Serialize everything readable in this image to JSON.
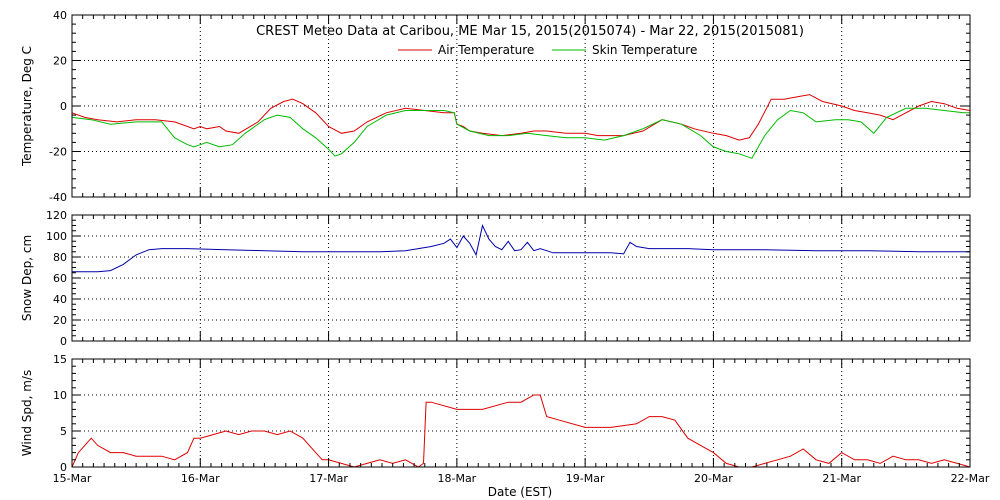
{
  "title": "CREST Meteo Data at Caribou, ME   Mar 15, 2015(2015074) - Mar 22, 2015(2015081)",
  "xlabel": "Date (EST)",
  "chart_data": [
    {
      "type": "line",
      "ylabel": "Temperature, Deg C",
      "ylim": [
        -40,
        40
      ],
      "yticks": [
        "40",
        "20",
        "0",
        "-20",
        "-40"
      ],
      "xlim": [
        0,
        7
      ],
      "grid": true,
      "legend_placement": "top-center",
      "series": [
        {
          "name": "Air Temperature",
          "color": "#dd0000",
          "x": [
            0,
            0.1,
            0.2,
            0.35,
            0.5,
            0.65,
            0.8,
            0.95,
            1.0,
            1.05,
            1.15,
            1.2,
            1.3,
            1.45,
            1.55,
            1.65,
            1.72,
            1.8,
            1.9,
            2.0,
            2.1,
            2.2,
            2.3,
            2.45,
            2.6,
            2.75,
            2.9,
            2.98,
            3.0,
            3.05,
            3.1,
            3.2,
            3.35,
            3.5,
            3.6,
            3.7,
            3.85,
            4.0,
            4.1,
            4.2,
            4.3,
            4.45,
            4.6,
            4.75,
            4.85,
            5.0,
            5.1,
            5.2,
            5.28,
            5.35,
            5.45,
            5.55,
            5.65,
            5.75,
            5.85,
            6.0,
            6.1,
            6.2,
            6.3,
            6.4,
            6.5,
            6.6,
            6.7,
            6.8,
            6.9,
            7.0
          ],
          "y": [
            -3,
            -5,
            -6,
            -7,
            -6,
            -6,
            -7,
            -10,
            -9,
            -10,
            -9,
            -11,
            -12,
            -7,
            -1,
            2,
            3,
            1,
            -3,
            -9,
            -12,
            -11,
            -7,
            -3,
            -1,
            -2,
            -3,
            -3,
            -8,
            -9,
            -11,
            -12,
            -13,
            -12,
            -11,
            -11,
            -12,
            -12,
            -13,
            -13,
            -13,
            -11,
            -6,
            -8,
            -10,
            -12,
            -13,
            -15,
            -14,
            -8,
            3,
            3,
            4,
            5,
            2,
            0,
            -2,
            -3,
            -4,
            -6,
            -3,
            0,
            2,
            1,
            -1,
            -2
          ]
        },
        {
          "name": "Skin Temperature",
          "color": "#00bb00",
          "x": [
            0,
            0.15,
            0.3,
            0.5,
            0.7,
            0.8,
            0.9,
            0.95,
            1.0,
            1.05,
            1.15,
            1.25,
            1.35,
            1.5,
            1.6,
            1.7,
            1.8,
            1.9,
            2.0,
            2.05,
            2.1,
            2.2,
            2.3,
            2.45,
            2.6,
            2.75,
            2.9,
            2.98,
            3.0,
            3.1,
            3.25,
            3.4,
            3.55,
            3.7,
            3.85,
            4.0,
            4.15,
            4.3,
            4.45,
            4.6,
            4.75,
            4.9,
            5.0,
            5.1,
            5.2,
            5.3,
            5.4,
            5.5,
            5.6,
            5.7,
            5.8,
            5.95,
            6.05,
            6.15,
            6.25,
            6.35,
            6.5,
            6.65,
            6.8,
            6.95,
            7.0
          ],
          "y": [
            -5,
            -6,
            -8,
            -7,
            -7,
            -14,
            -17,
            -18,
            -17,
            -16,
            -18,
            -17,
            -12,
            -6,
            -4,
            -5,
            -10,
            -14,
            -19,
            -22,
            -21,
            -16,
            -9,
            -4,
            -2,
            -2,
            -2,
            -3,
            -8,
            -11,
            -13,
            -13,
            -12,
            -13,
            -14,
            -14,
            -15,
            -13,
            -10,
            -6,
            -8,
            -13,
            -18,
            -20,
            -21,
            -23,
            -13,
            -6,
            -2,
            -3,
            -7,
            -6,
            -6,
            -7,
            -12,
            -5,
            -1,
            -1,
            -2,
            -3,
            -3
          ]
        }
      ]
    },
    {
      "type": "line",
      "ylabel": "Snow Dep, cm",
      "ylim": [
        0,
        120
      ],
      "yticks": [
        "120",
        "100",
        "80",
        "60",
        "40",
        "20",
        "0"
      ],
      "xlim": [
        0,
        7
      ],
      "grid": true,
      "series": [
        {
          "color": "#0000aa",
          "x": [
            0,
            0.2,
            0.3,
            0.4,
            0.5,
            0.6,
            0.7,
            0.9,
            1.2,
            1.5,
            1.8,
            2.0,
            2.4,
            2.6,
            2.7,
            2.8,
            2.9,
            2.95,
            3.0,
            3.05,
            3.1,
            3.15,
            3.2,
            3.25,
            3.3,
            3.35,
            3.4,
            3.45,
            3.5,
            3.55,
            3.6,
            3.65,
            3.7,
            3.75,
            3.8,
            3.9,
            4.0,
            4.2,
            4.3,
            4.35,
            4.4,
            4.5,
            4.8,
            5.0,
            5.4,
            5.8,
            6.2,
            6.6,
            7.0
          ],
          "y": [
            66,
            66,
            67,
            73,
            82,
            87,
            88,
            88,
            87,
            86,
            85,
            85,
            85,
            86,
            88,
            90,
            93,
            97,
            89,
            100,
            93,
            82,
            110,
            97,
            90,
            87,
            95,
            86,
            87,
            94,
            86,
            88,
            86,
            84,
            84,
            84,
            84,
            84,
            83,
            94,
            90,
            88,
            88,
            87,
            87,
            86,
            86,
            85,
            85
          ]
        }
      ]
    },
    {
      "type": "line",
      "ylabel": "Wind Spd, m/s",
      "ylim": [
        0,
        15
      ],
      "yticks": [
        "15",
        "10",
        "5",
        "0"
      ],
      "xlim": [
        0,
        7
      ],
      "xticks": [
        "15-Mar",
        "16-Mar",
        "17-Mar",
        "18-Mar",
        "19-Mar",
        "20-Mar",
        "21-Mar",
        "22-Mar"
      ],
      "grid": true,
      "series": [
        {
          "color": "#dd0000",
          "x": [
            0,
            0.05,
            0.1,
            0.15,
            0.2,
            0.3,
            0.4,
            0.5,
            0.6,
            0.7,
            0.8,
            0.9,
            0.95,
            1.0,
            1.1,
            1.2,
            1.3,
            1.4,
            1.5,
            1.6,
            1.7,
            1.8,
            1.85,
            1.9,
            1.95,
            2.0,
            2.1,
            2.2,
            2.3,
            2.4,
            2.5,
            2.6,
            2.7,
            2.74,
            2.76,
            2.8,
            3.0,
            3.2,
            3.4,
            3.5,
            3.6,
            3.65,
            3.7,
            3.8,
            4.0,
            4.2,
            4.4,
            4.5,
            4.6,
            4.7,
            4.8,
            4.9,
            5.0,
            5.1,
            5.2,
            5.3,
            5.4,
            5.5,
            5.6,
            5.7,
            5.8,
            5.9,
            6.0,
            6.1,
            6.2,
            6.3,
            6.4,
            6.5,
            6.6,
            6.7,
            6.8,
            6.9,
            7.0
          ],
          "y": [
            0,
            2,
            3,
            4,
            3,
            2,
            2,
            1.5,
            1.5,
            1.5,
            1,
            2,
            4,
            4,
            4.5,
            5,
            4.5,
            5,
            5,
            4.5,
            5,
            4,
            3,
            2,
            1,
            1,
            0.5,
            0,
            0.5,
            1,
            0.5,
            1,
            0,
            0.5,
            9,
            9,
            8,
            8,
            9,
            9,
            10,
            10,
            7,
            6.5,
            5.5,
            5.5,
            6,
            7,
            7,
            6.5,
            4,
            3,
            2,
            0.5,
            0,
            0,
            0.5,
            1,
            1.5,
            2.5,
            1,
            0.5,
            2,
            1,
            1,
            0.5,
            1.5,
            1,
            1,
            0.5,
            1,
            0.5,
            0
          ]
        }
      ]
    }
  ]
}
